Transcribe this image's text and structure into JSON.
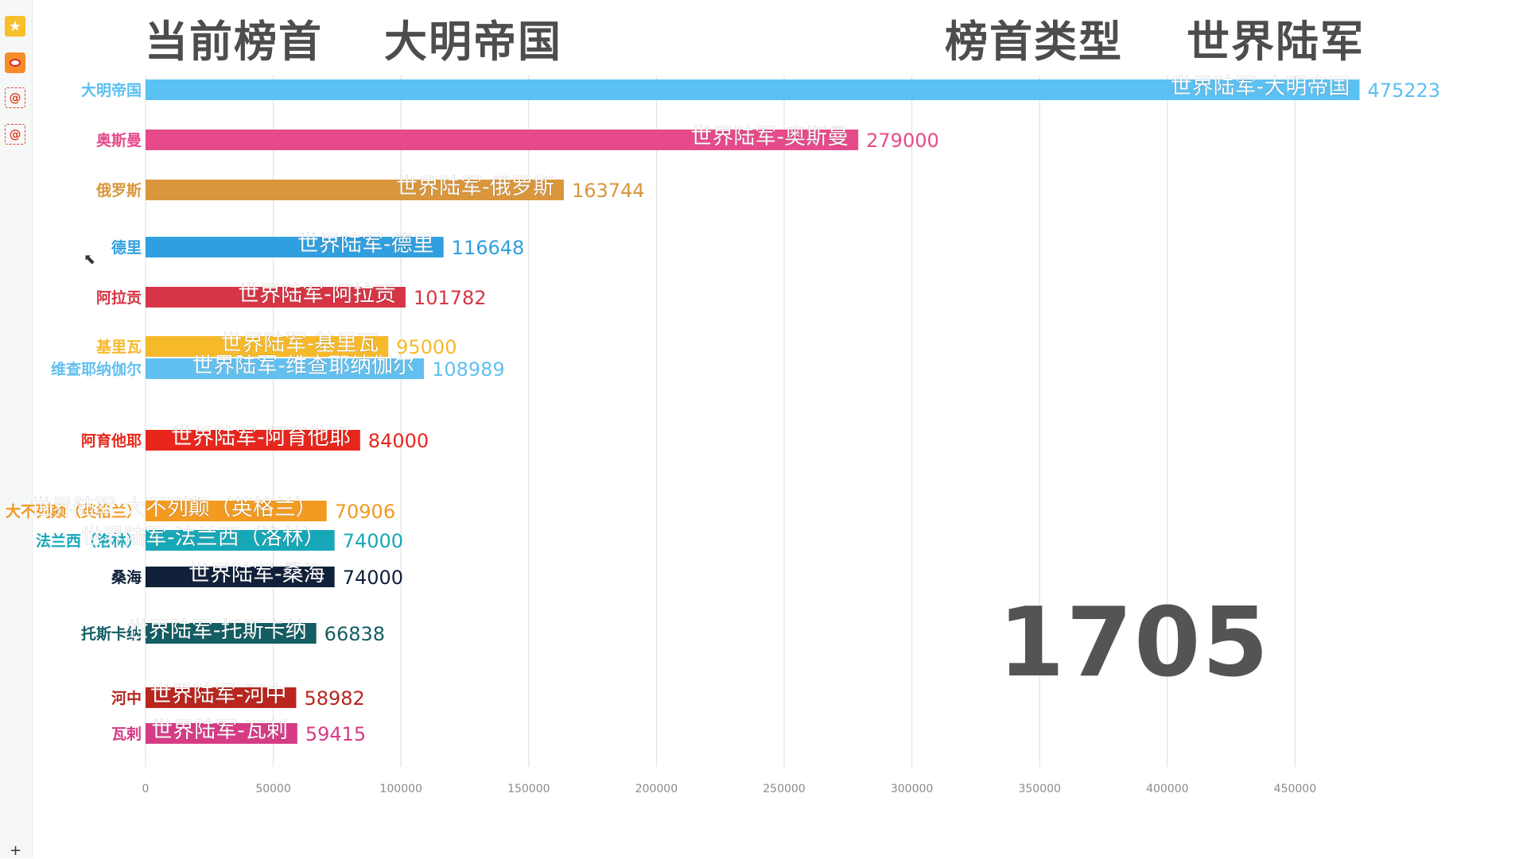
{
  "header": {
    "current_label": "当前榜首",
    "current_value": "大明帝国",
    "type_label": "榜首类型",
    "type_value": "世界陆军"
  },
  "year": "1705",
  "chart_data": {
    "type": "bar",
    "orientation": "horizontal",
    "title": "",
    "xlabel": "",
    "ylabel": "",
    "xlim": [
      0,
      500000
    ],
    "x_ticks": [
      0,
      50000,
      100000,
      150000,
      200000,
      250000,
      300000,
      350000,
      400000,
      450000
    ],
    "grid": true,
    "legend": "none",
    "bars": [
      {
        "category": "大明帝国",
        "label": "世界陆军-大明帝国",
        "value": 475223,
        "color": "#5bc0f2"
      },
      {
        "category": "奥斯曼",
        "label": "世界陆军-奥斯曼",
        "value": 279000,
        "color": "#e64a8a"
      },
      {
        "category": "俄罗斯",
        "label": "世界陆军-俄罗斯",
        "value": 163744,
        "color": "#d9963b"
      },
      {
        "category": "德里",
        "label": "世界陆军-德里",
        "value": 116648,
        "color": "#2f9fe0"
      },
      {
        "category": "阿拉贡",
        "label": "世界陆军-阿拉贡",
        "value": 101782,
        "color": "#d63545"
      },
      {
        "category": "基里瓦",
        "label": "世界陆军-基里瓦",
        "value": 95000,
        "color": "#f6b92a"
      },
      {
        "category": "维查耶纳伽尔",
        "label": "世界陆军-维查耶纳伽尔",
        "value": 108989,
        "color": "#62c0f0"
      },
      {
        "category": "阿育他耶",
        "label": "世界陆军-阿育他耶",
        "value": 84000,
        "color": "#e8261c"
      },
      {
        "category": "大不列颠（英格兰）",
        "label": "世界陆军-大不列颠（英格兰）",
        "value": 70906,
        "color": "#f39a20"
      },
      {
        "category": "法兰西（洛林）",
        "label": "世界陆军-法兰西（洛林）",
        "value": 74000,
        "color": "#17a8b8"
      },
      {
        "category": "桑海",
        "label": "世界陆军-桑海",
        "value": 74000,
        "color": "#11213a"
      },
      {
        "category": "托斯卡纳",
        "label": "世界陆军-托斯卡纳",
        "value": 66838,
        "color": "#135d63"
      },
      {
        "category": "河中",
        "label": "世界陆军-河中",
        "value": 58982,
        "color": "#b8261e"
      },
      {
        "category": "瓦剌",
        "label": "世界陆军-瓦剌",
        "value": 59415,
        "color": "#d63c86"
      }
    ]
  }
}
